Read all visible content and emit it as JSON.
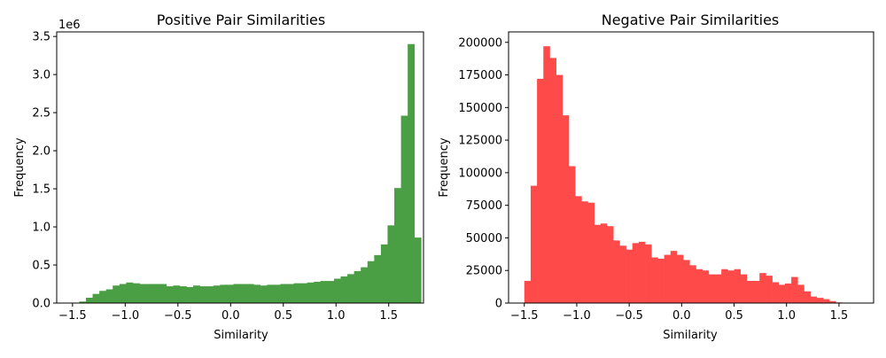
{
  "chart_data": [
    {
      "type": "bar",
      "title": "Positive Pair Similarities",
      "xlabel": "Similarity",
      "ylabel": "Frequency",
      "y_offset_label": "1e6",
      "color": "#4a9e44",
      "xlim": [
        -1.65,
        1.83
      ],
      "ylim": [
        0,
        3.56
      ],
      "xticks": [
        -1.5,
        -1.0,
        -0.5,
        0.0,
        0.5,
        1.0,
        1.5
      ],
      "xtick_labels": [
        "−1.5",
        "−1.0",
        "−0.5",
        "0.0",
        "0.5",
        "1.0",
        "1.5"
      ],
      "yticks": [
        0,
        0.5,
        1.0,
        1.5,
        2.0,
        2.5,
        3.0,
        3.5
      ],
      "ytick_labels": [
        "0.0",
        "0.5",
        "1.0",
        "1.5",
        "2.0",
        "2.5",
        "3.0",
        "3.5"
      ],
      "bin_start": -1.5,
      "bin_width": 0.0636,
      "values": [
        0.0,
        0.02,
        0.07,
        0.12,
        0.16,
        0.18,
        0.23,
        0.25,
        0.27,
        0.26,
        0.25,
        0.25,
        0.25,
        0.25,
        0.22,
        0.23,
        0.22,
        0.21,
        0.23,
        0.22,
        0.22,
        0.23,
        0.24,
        0.24,
        0.25,
        0.25,
        0.25,
        0.24,
        0.23,
        0.24,
        0.24,
        0.25,
        0.25,
        0.26,
        0.26,
        0.27,
        0.28,
        0.29,
        0.29,
        0.32,
        0.35,
        0.38,
        0.42,
        0.47,
        0.55,
        0.63,
        0.77,
        1.02,
        1.51,
        2.46,
        3.4,
        0.86
      ]
    },
    {
      "type": "bar",
      "title": "Negative Pair Similarities",
      "xlabel": "Similarity",
      "ylabel": "Frequency",
      "color": "#ff4a4a",
      "xlim": [
        -1.65,
        1.83
      ],
      "ylim": [
        0,
        208000
      ],
      "xticks": [
        -1.5,
        -1.0,
        -0.5,
        0.0,
        0.5,
        1.0,
        1.5
      ],
      "xtick_labels": [
        "−1.5",
        "−1.0",
        "−0.5",
        "0.0",
        "0.5",
        "1.0",
        "1.5"
      ],
      "yticks": [
        0,
        25000,
        50000,
        75000,
        100000,
        125000,
        150000,
        175000,
        200000
      ],
      "ytick_labels": [
        "0",
        "25000",
        "50000",
        "75000",
        "100000",
        "125000",
        "150000",
        "175000",
        "200000"
      ],
      "bin_start": -1.5,
      "bin_width": 0.0606,
      "values": [
        17000,
        90000,
        172000,
        197000,
        188000,
        175000,
        144000,
        105000,
        82000,
        78000,
        77000,
        60000,
        61000,
        59000,
        48000,
        44000,
        41000,
        46000,
        47000,
        45000,
        35000,
        34000,
        37000,
        40000,
        37000,
        33000,
        29000,
        26000,
        25000,
        22000,
        22000,
        26000,
        25000,
        26000,
        22000,
        17000,
        17000,
        23000,
        21000,
        16000,
        14000,
        15000,
        20000,
        14000,
        9000,
        5000,
        4000,
        3000,
        1500,
        500,
        0,
        0,
        0
      ]
    }
  ]
}
